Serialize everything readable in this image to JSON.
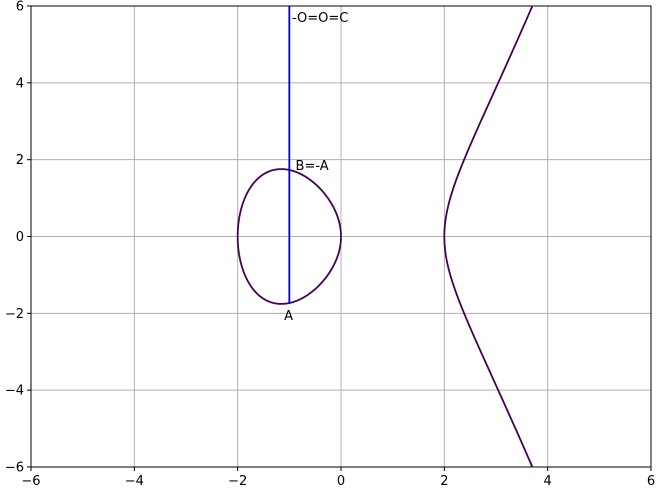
{
  "chart_data": {
    "type": "line",
    "title": "",
    "xlabel": "",
    "ylabel": "",
    "xlim": [
      -6,
      6
    ],
    "ylim": [
      -6,
      6
    ],
    "grid": true,
    "xticks": [
      -6,
      -4,
      -2,
      0,
      2,
      4,
      6
    ],
    "yticks": [
      -6,
      -4,
      -2,
      0,
      2,
      4,
      6
    ],
    "xtick_labels": [
      "−6",
      "−4",
      "−2",
      "0",
      "2",
      "4",
      "6"
    ],
    "ytick_labels": [
      "−6",
      "−4",
      "−2",
      "0",
      "2",
      "4",
      "6"
    ],
    "curve": {
      "equation": "y^2 = x^3 - 4x",
      "color": "#440154",
      "oval_x_range": [
        -2,
        0
      ],
      "branch_x_range": [
        2,
        3.7
      ]
    },
    "vertical_line": {
      "x": -1,
      "y_from": -1.732,
      "y_to": 6,
      "color": "#0000cc"
    },
    "annotations": [
      {
        "text": "-O=O=C",
        "x": -0.95,
        "y": 5.7
      },
      {
        "text": "B=-A",
        "x": -0.88,
        "y": 1.85
      },
      {
        "text": "A",
        "x": -1.1,
        "y": -2.05
      }
    ],
    "colors": {
      "grid": "#b0b0b0",
      "axes": "#000000"
    }
  }
}
